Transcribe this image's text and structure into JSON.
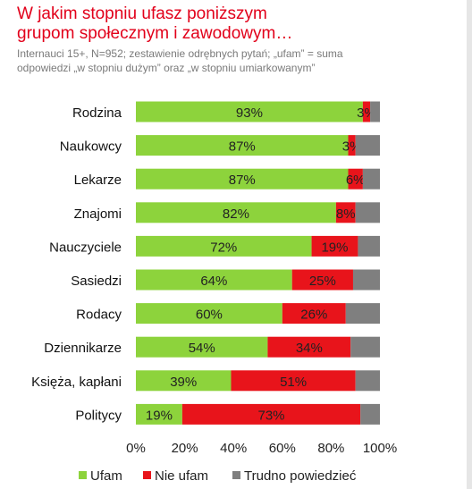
{
  "header": {
    "title_line1": "W jakim stopniu ufasz poniższym",
    "title_line2": "grupom społecznym i  zawodowym…",
    "subtitle_line1": "Internauci 15+, N=952; zestawienie odrębnych pytań; „ufam” = suma",
    "subtitle_line2": "odpowiedzi „w stopniu dużym” oraz „w stopniu umiarkowanym”"
  },
  "colors": {
    "ufam": "#8dd33c",
    "nie_ufam": "#e8141b",
    "trudno": "#7f7f7f",
    "title": "#e2001a"
  },
  "chart_data": {
    "type": "bar",
    "orientation": "horizontal",
    "stacked": true,
    "categories": [
      "Rodzina",
      "Naukowcy",
      "Lekarze",
      "Znajomi",
      "Nauczyciele",
      "Sasiedzi",
      "Rodacy",
      "Dziennikarze",
      "Księża, kapłani",
      "Politycy"
    ],
    "series": [
      {
        "name": "Ufam",
        "color": "#8dd33c",
        "values": [
          93,
          87,
          87,
          82,
          72,
          64,
          60,
          54,
          39,
          19
        ],
        "labels": [
          "93%",
          "87%",
          "87%",
          "82%",
          "72%",
          "64%",
          "60%",
          "54%",
          "39%",
          "19%"
        ]
      },
      {
        "name": "Nie ufam",
        "color": "#e8141b",
        "values": [
          3,
          3,
          6,
          8,
          19,
          25,
          26,
          34,
          51,
          73
        ],
        "labels": [
          "3%",
          "3%",
          "6%",
          "8%",
          "19%",
          "25%",
          "26%",
          "34%",
          "51%",
          "73%"
        ]
      },
      {
        "name": "Trudno powiedzieć",
        "color": "#7f7f7f",
        "values": [
          4,
          10,
          7,
          10,
          9,
          11,
          14,
          12,
          10,
          8
        ],
        "labels": []
      }
    ],
    "xlim": [
      0,
      100
    ],
    "xticks": [
      "0%",
      "20%",
      "40%",
      "60%",
      "80%",
      "100%"
    ],
    "grid": false,
    "legend": "bottom"
  }
}
